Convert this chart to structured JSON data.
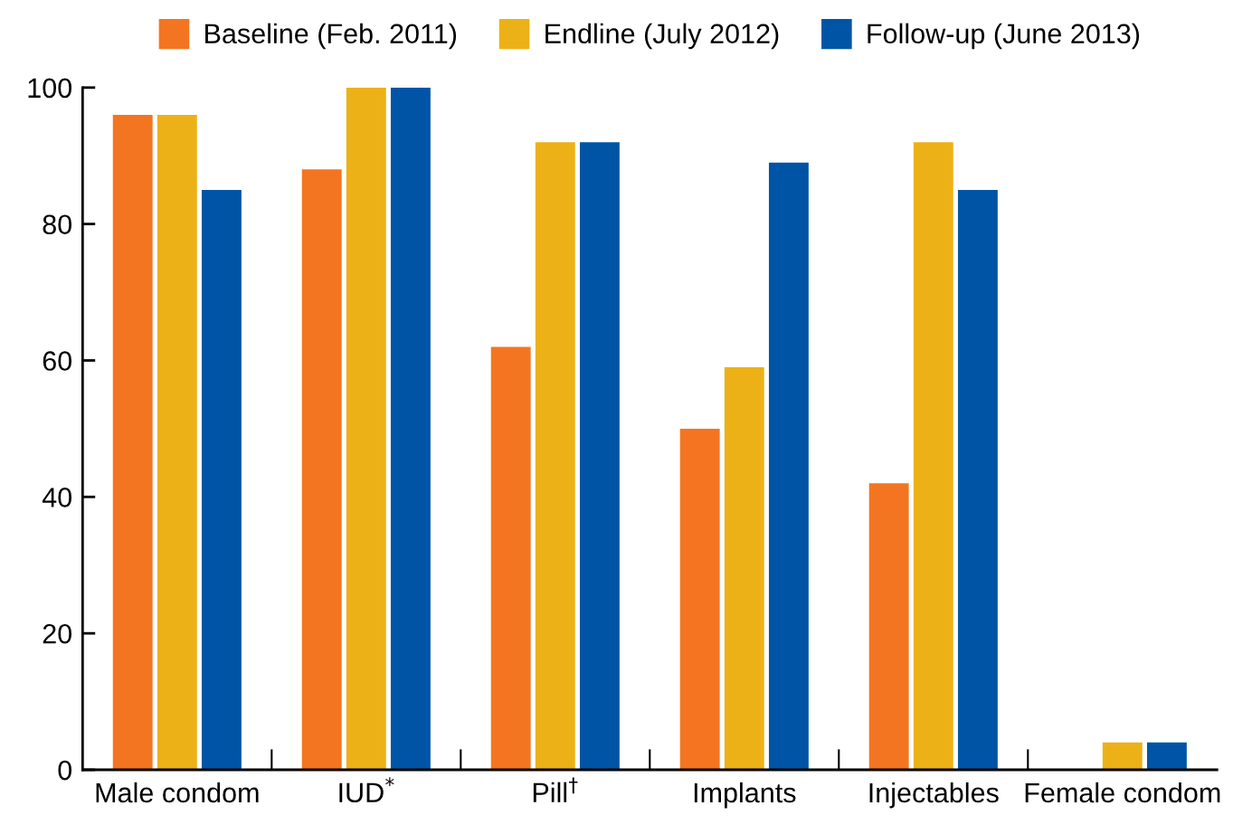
{
  "chart_data": {
    "type": "bar",
    "categories": [
      "Male condom",
      "IUD$^{*}$",
      "Pill$^{†}$",
      "Implants",
      "Injectables",
      "Female condom"
    ],
    "series": [
      {
        "name": "Baseline (Feb. 2011)",
        "color": "#f47521",
        "values": [
          96,
          88,
          62,
          50,
          42,
          0
        ]
      },
      {
        "name": "Endline (July 2012)",
        "color": "#edb118",
        "values": [
          96,
          100,
          92,
          59,
          92,
          4
        ]
      },
      {
        "name": "Follow-up (June 2013)",
        "color": "#0054a6",
        "values": [
          85,
          100,
          92,
          89,
          85,
          4
        ]
      }
    ],
    "ylim": [
      0,
      100
    ],
    "yticks": [
      0,
      20,
      40,
      60,
      80,
      100
    ],
    "grid": false,
    "legend": "top"
  }
}
